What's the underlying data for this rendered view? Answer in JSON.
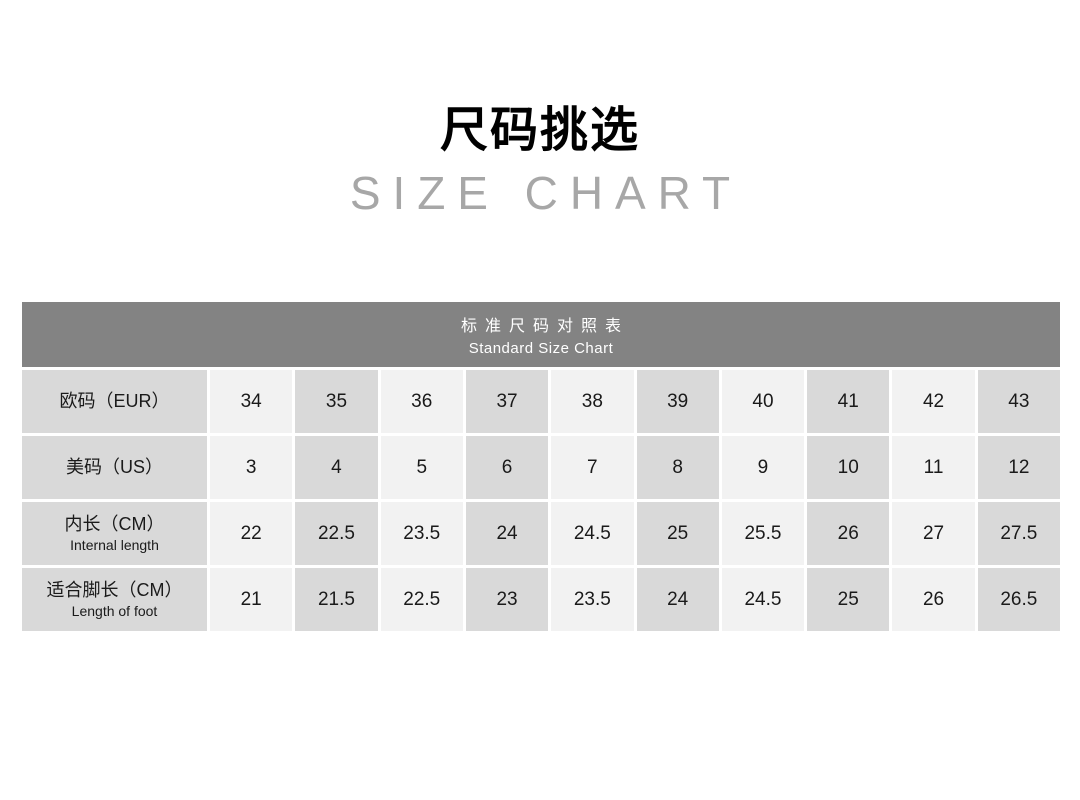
{
  "page": {
    "title": "尺码挑选",
    "subtitle": "SIZE CHART"
  },
  "table": {
    "header": {
      "title_zh": "标准尺码对照表",
      "title_en": "Standard Size Chart"
    },
    "rows": [
      {
        "label_zh": "欧码（EUR）",
        "label_en": "",
        "values": [
          "34",
          "35",
          "36",
          "37",
          "38",
          "39",
          "40",
          "41",
          "42",
          "43"
        ]
      },
      {
        "label_zh": "美码（US）",
        "label_en": "",
        "values": [
          "3",
          "4",
          "5",
          "6",
          "7",
          "8",
          "9",
          "10",
          "11",
          "12"
        ]
      },
      {
        "label_zh": "内长（CM）",
        "label_en": "Internal length",
        "values": [
          "22",
          "22.5",
          "23.5",
          "24",
          "24.5",
          "25",
          "25.5",
          "26",
          "27",
          "27.5"
        ]
      },
      {
        "label_zh": "适合脚长（CM）",
        "label_en": "Length of foot",
        "values": [
          "21",
          "21.5",
          "22.5",
          "23",
          "23.5",
          "24",
          "24.5",
          "25",
          "26",
          "26.5"
        ]
      }
    ]
  },
  "chart_data": {
    "type": "table",
    "title": "标准尺码对照表 / Standard Size Chart",
    "row_headers": [
      "欧码（EUR）",
      "美码（US）",
      "内长（CM）Internal length",
      "适合脚长（CM）Length of foot"
    ],
    "rows": [
      [
        34,
        35,
        36,
        37,
        38,
        39,
        40,
        41,
        42,
        43
      ],
      [
        3,
        4,
        5,
        6,
        7,
        8,
        9,
        10,
        11,
        12
      ],
      [
        22,
        22.5,
        23.5,
        24,
        24.5,
        25,
        25.5,
        26,
        27,
        27.5
      ],
      [
        21,
        21.5,
        22.5,
        23,
        23.5,
        24,
        24.5,
        25,
        26,
        26.5
      ]
    ]
  },
  "colors": {
    "header_bg": "#838383",
    "header_text": "#ffffff",
    "cell_gray": "#d9d9d9",
    "cell_light": "#f2f2f2",
    "subtitle_text": "#a7a7a7",
    "title_text": "#000000",
    "cell_text": "#1a1a1a"
  }
}
